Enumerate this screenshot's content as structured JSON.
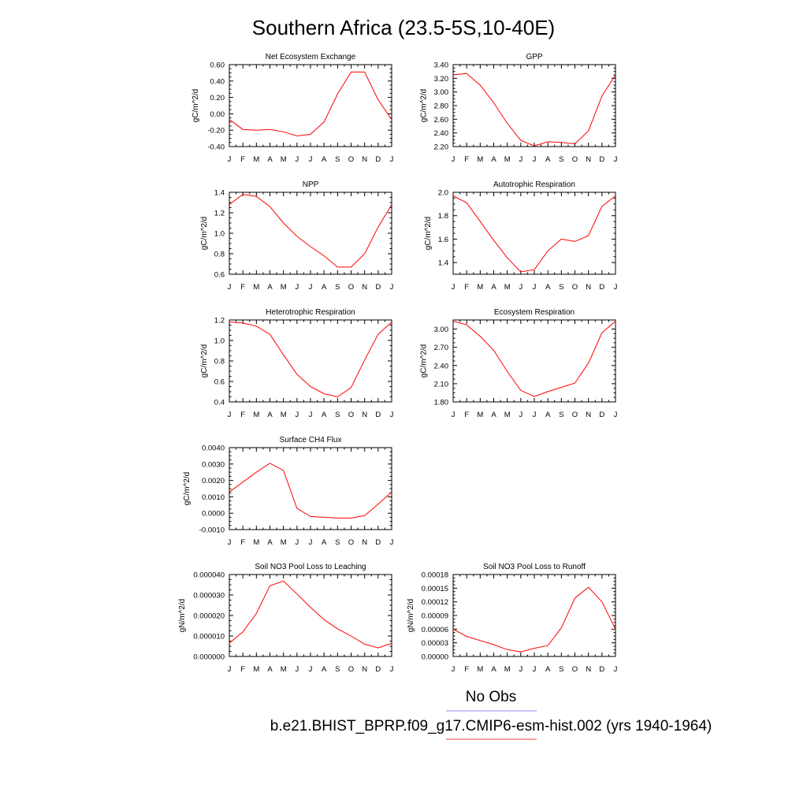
{
  "page": {
    "title": "Southern Africa (23.5-5S,10-40E)"
  },
  "legend": {
    "obs_label": "No Obs",
    "obs_color": "#8888ee",
    "run_label": "b.e21.BHIST_BPRP.f09_g17.CMIP6-esm-hist.002 (yrs 1940-1964)",
    "run_color": "#ee4444"
  },
  "colors": {
    "series": "#ff0000",
    "axes": "#000000"
  },
  "chart_data": [
    {
      "type": "line",
      "title": "Net Ecosystem Exchange",
      "ylabel": "gC/m^2/d",
      "x": [
        "J",
        "F",
        "M",
        "A",
        "M",
        "J",
        "J",
        "A",
        "S",
        "O",
        "N",
        "D",
        "J"
      ],
      "ylim": [
        -0.4,
        0.6
      ],
      "yticks": [
        -0.4,
        -0.2,
        0.0,
        0.2,
        0.4,
        0.6
      ],
      "ytick_labels": [
        "-0.40",
        "-0.20",
        "0.00",
        "0.20",
        "0.40",
        "0.60"
      ],
      "series": [
        {
          "values": [
            -0.07,
            -0.19,
            -0.2,
            -0.19,
            -0.22,
            -0.27,
            -0.25,
            -0.1,
            0.24,
            0.51,
            0.51,
            0.17,
            -0.07
          ]
        }
      ]
    },
    {
      "type": "line",
      "title": "GPP",
      "ylabel": "gC/m^2/d",
      "x": [
        "J",
        "F",
        "M",
        "A",
        "M",
        "J",
        "J",
        "A",
        "S",
        "O",
        "N",
        "D",
        "J"
      ],
      "ylim": [
        2.2,
        3.4
      ],
      "yticks": [
        2.2,
        2.4,
        2.6,
        2.8,
        3.0,
        3.2,
        3.4
      ],
      "ytick_labels": [
        "2.20",
        "2.40",
        "2.60",
        "2.80",
        "3.00",
        "3.20",
        "3.40"
      ],
      "series": [
        {
          "values": [
            3.25,
            3.27,
            3.1,
            2.84,
            2.54,
            2.29,
            2.21,
            2.27,
            2.26,
            2.24,
            2.43,
            2.94,
            3.25
          ]
        }
      ]
    },
    {
      "type": "line",
      "title": "NPP",
      "ylabel": "gC/m^2/d",
      "x": [
        "J",
        "F",
        "M",
        "A",
        "M",
        "J",
        "J",
        "A",
        "S",
        "O",
        "N",
        "D",
        "J"
      ],
      "ylim": [
        0.6,
        1.4
      ],
      "yticks": [
        0.6,
        0.8,
        1.0,
        1.2,
        1.4
      ],
      "ytick_labels": [
        "0.6",
        "0.8",
        "1.0",
        "1.2",
        "1.4"
      ],
      "series": [
        {
          "values": [
            1.28,
            1.38,
            1.36,
            1.26,
            1.1,
            0.97,
            0.87,
            0.78,
            0.67,
            0.67,
            0.8,
            1.06,
            1.28
          ]
        }
      ]
    },
    {
      "type": "line",
      "title": "Autotrophic Respiration",
      "ylabel": "gC/m^2/d",
      "x": [
        "J",
        "F",
        "M",
        "A",
        "M",
        "J",
        "J",
        "A",
        "S",
        "O",
        "N",
        "D",
        "J"
      ],
      "ylim": [
        1.3,
        2.0
      ],
      "yticks": [
        1.4,
        1.6,
        1.8,
        2.0
      ],
      "ytick_labels": [
        "1.4",
        "1.6",
        "1.8",
        "2.0"
      ],
      "series": [
        {
          "values": [
            1.97,
            1.91,
            1.75,
            1.59,
            1.44,
            1.32,
            1.34,
            1.5,
            1.6,
            1.58,
            1.63,
            1.88,
            1.97
          ]
        }
      ]
    },
    {
      "type": "line",
      "title": "Heterotrophic Respiration",
      "ylabel": "gC/m^2/d",
      "x": [
        "J",
        "F",
        "M",
        "A",
        "M",
        "J",
        "J",
        "A",
        "S",
        "O",
        "N",
        "D",
        "J"
      ],
      "ylim": [
        0.4,
        1.2
      ],
      "yticks": [
        0.4,
        0.6,
        0.8,
        1.0,
        1.2
      ],
      "ytick_labels": [
        "0.4",
        "0.6",
        "0.8",
        "1.0",
        "1.2"
      ],
      "series": [
        {
          "values": [
            1.18,
            1.17,
            1.14,
            1.06,
            0.86,
            0.67,
            0.55,
            0.48,
            0.45,
            0.54,
            0.81,
            1.06,
            1.18
          ]
        }
      ]
    },
    {
      "type": "line",
      "title": "Ecosystem Respiration",
      "ylabel": "gC/m^2/d",
      "x": [
        "J",
        "F",
        "M",
        "A",
        "M",
        "J",
        "J",
        "A",
        "S",
        "O",
        "N",
        "D",
        "J"
      ],
      "ylim": [
        1.8,
        3.15
      ],
      "yticks": [
        1.8,
        2.1,
        2.4,
        2.7,
        3.0
      ],
      "ytick_labels": [
        "1.80",
        "2.10",
        "2.40",
        "2.70",
        "3.00"
      ],
      "series": [
        {
          "values": [
            3.13,
            3.07,
            2.88,
            2.65,
            2.3,
            1.99,
            1.89,
            1.97,
            2.04,
            2.11,
            2.44,
            2.94,
            3.13
          ]
        }
      ]
    },
    {
      "type": "line",
      "title": "Surface CH4 Flux",
      "ylabel": "gC/m^2/d",
      "x": [
        "J",
        "F",
        "M",
        "A",
        "M",
        "J",
        "J",
        "A",
        "S",
        "O",
        "N",
        "D",
        "J"
      ],
      "ylim": [
        -0.001,
        0.004
      ],
      "yticks": [
        -0.001,
        0.0,
        0.001,
        0.002,
        0.003,
        0.004
      ],
      "ytick_labels": [
        "-0.0010",
        "0.0000",
        "0.0010",
        "0.0020",
        "0.0030",
        "0.0040"
      ],
      "series": [
        {
          "values": [
            0.0013,
            0.0019,
            0.0025,
            0.00305,
            0.0026,
            0.0003,
            -0.0002,
            -0.00025,
            -0.0003,
            -0.0003,
            -0.00015,
            0.00055,
            0.0013
          ]
        }
      ]
    },
    {
      "type": "line",
      "title": "Soil NO3 Pool Loss to Leaching",
      "ylabel": "gN/m^2/d",
      "x": [
        "J",
        "F",
        "M",
        "A",
        "M",
        "J",
        "J",
        "A",
        "S",
        "O",
        "N",
        "D",
        "J"
      ],
      "ylim": [
        0.0,
        4e-05
      ],
      "yticks": [
        0.0,
        1e-05,
        2e-05,
        3e-05,
        4e-05
      ],
      "ytick_labels": [
        "0.000000",
        "0.000010",
        "0.000020",
        "0.000030",
        "0.000040"
      ],
      "series": [
        {
          "values": [
            6.5e-06,
            1.2e-05,
            2.1e-05,
            3.45e-05,
            3.68e-05,
            3.05e-05,
            2.4e-05,
            1.8e-05,
            1.35e-05,
            1e-05,
            6e-06,
            4.2e-06,
            6.5e-06
          ]
        }
      ]
    },
    {
      "type": "line",
      "title": "Soil NO3 Pool Loss to Runoff",
      "ylabel": "gN/m^2/d",
      "x": [
        "J",
        "F",
        "M",
        "A",
        "M",
        "J",
        "J",
        "A",
        "S",
        "O",
        "N",
        "D",
        "J"
      ],
      "ylim": [
        0.0,
        0.00018
      ],
      "yticks": [
        0.0,
        3e-05,
        6e-05,
        9e-05,
        0.00012,
        0.00015,
        0.00018
      ],
      "ytick_labels": [
        "0.00000",
        "0.00003",
        "0.00006",
        "0.00009",
        "0.00012",
        "0.00015",
        "0.00018"
      ],
      "series": [
        {
          "values": [
            6e-05,
            4.4e-05,
            3.5e-05,
            2.6e-05,
            1.5e-05,
            1e-05,
            1.8e-05,
            2.4e-05,
            6.3e-05,
            0.000128,
            0.000152,
            0.00012,
            6e-05
          ]
        }
      ]
    }
  ]
}
